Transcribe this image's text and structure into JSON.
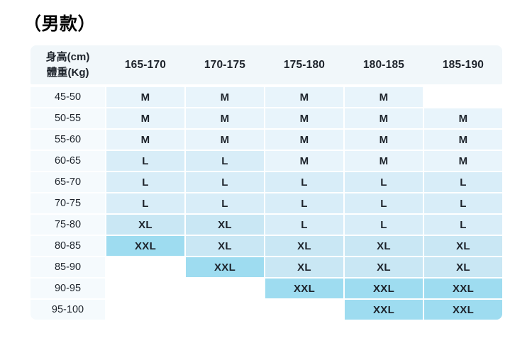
{
  "chart_data": {
    "type": "table",
    "title": "（男款）",
    "corner": {
      "line1": "身高(cm)",
      "line2": "體重(Kg)"
    },
    "columns": [
      "165-170",
      "170-175",
      "175-180",
      "180-185",
      "185-190"
    ],
    "rows": [
      {
        "label": "45-50",
        "values": [
          "M",
          "M",
          "M",
          "M",
          ""
        ]
      },
      {
        "label": "50-55",
        "values": [
          "M",
          "M",
          "M",
          "M",
          "M"
        ]
      },
      {
        "label": "55-60",
        "values": [
          "M",
          "M",
          "M",
          "M",
          "M"
        ]
      },
      {
        "label": "60-65",
        "values": [
          "L",
          "L",
          "M",
          "M",
          "M"
        ]
      },
      {
        "label": "65-70",
        "values": [
          "L",
          "L",
          "L",
          "L",
          "L"
        ]
      },
      {
        "label": "70-75",
        "values": [
          "L",
          "L",
          "L",
          "L",
          "L"
        ]
      },
      {
        "label": "75-80",
        "values": [
          "XL",
          "XL",
          "L",
          "L",
          "L"
        ]
      },
      {
        "label": "80-85",
        "values": [
          "XXL",
          "XL",
          "XL",
          "XL",
          "XL"
        ]
      },
      {
        "label": "85-90",
        "values": [
          "",
          "XXL",
          "XL",
          "XL",
          "XL"
        ]
      },
      {
        "label": "90-95",
        "values": [
          "",
          "",
          "XXL",
          "XXL",
          "XXL"
        ]
      },
      {
        "label": "95-100",
        "values": [
          "",
          "",
          "",
          "XXL",
          "XXL"
        ]
      }
    ],
    "legend_colors": {
      "M": "#e8f4fb",
      "L": "#d8edf8",
      "XL": "#c9e7f4",
      "XXL": "#9edcf0"
    }
  },
  "colors": {
    "header_bg": "#f1f7fa",
    "row_label_bg": "#f5fafd",
    "empty_cell_bg": "#ffffff",
    "text": "#1d232b",
    "title_text": "#000000"
  }
}
